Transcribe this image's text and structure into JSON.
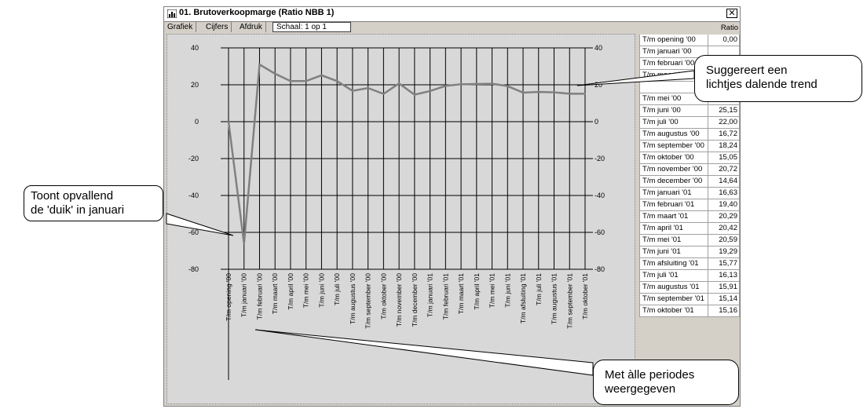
{
  "window": {
    "title": "01. Brutoverkoopmarge (Ratio NBB 1)",
    "close": "✕",
    "icon": "chart-window-icon"
  },
  "tabs": [
    "Grafiek",
    "Cijfers",
    "Afdruk"
  ],
  "schaal": "Schaal: 1 op 1",
  "table": {
    "header": "Ratio",
    "rows": [
      {
        "label": "T/m opening '00",
        "value": "0,00"
      },
      {
        "label": "T/m januari '00",
        "value": ""
      },
      {
        "label": "T/m februari '00",
        "value": ""
      },
      {
        "label": "T/m maart '00",
        "value": ""
      },
      {
        "label": "",
        "value": ""
      },
      {
        "label": "T/m mei '00",
        "value": ""
      },
      {
        "label": "T/m juni '00",
        "value": "25,15"
      },
      {
        "label": "T/m juli '00",
        "value": "22,00"
      },
      {
        "label": "T/m augustus '00",
        "value": "16,72"
      },
      {
        "label": "T/m september '00",
        "value": "18,24"
      },
      {
        "label": "T/m oktober '00",
        "value": "15,05"
      },
      {
        "label": "T/m november '00",
        "value": "20,72"
      },
      {
        "label": "T/m december '00",
        "value": "14,64"
      },
      {
        "label": "T/m januari '01",
        "value": "16,63"
      },
      {
        "label": "T/m februari '01",
        "value": "19,40"
      },
      {
        "label": "T/m maart '01",
        "value": "20,29"
      },
      {
        "label": "T/m april '01",
        "value": "20,42"
      },
      {
        "label": "T/m mei '01",
        "value": "20,59"
      },
      {
        "label": "T/m juni '01",
        "value": "19,29"
      },
      {
        "label": "T/m afsluiting '01",
        "value": "15,77"
      },
      {
        "label": "T/m juli '01",
        "value": "16,13"
      },
      {
        "label": "T/m augustus '01",
        "value": "15,91"
      },
      {
        "label": "T/m september '01",
        "value": "15,14"
      },
      {
        "label": "T/m oktober '01",
        "value": "15,16"
      }
    ]
  },
  "chart_data": {
    "type": "line",
    "ylim": [
      -80,
      40
    ],
    "yticks": [
      "40",
      "20",
      "0",
      "-20",
      "-40",
      "-60",
      "-80"
    ],
    "ytick_values": [
      40,
      20,
      0,
      -20,
      -40,
      -60,
      -80
    ],
    "grid": true,
    "categories": [
      "T/m opening '00",
      "T/m januari '00",
      "T/m februari '00",
      "T/m maart '00",
      "T/m april '00",
      "T/m mei '00",
      "T/m juni '00",
      "T/m juli '00",
      "T/m augustus '00",
      "T/m september '00",
      "T/m oktober '00",
      "T/m november '00",
      "T/m december '00",
      "T/m januari '01",
      "T/m februari '01",
      "T/m maart '01",
      "T/m april '01",
      "T/m mei '01",
      "T/m juni '01",
      "T/m afsluiting '01",
      "T/m juli '01",
      "T/m augustus '01",
      "T/m september '01",
      "T/m oktober '01"
    ],
    "values": [
      0,
      -66,
      31,
      26,
      22,
      22,
      25.15,
      22,
      16.72,
      18.24,
      15.05,
      20.72,
      14.64,
      16.63,
      19.4,
      20.29,
      20.42,
      20.59,
      19.29,
      15.77,
      16.13,
      15.91,
      15.14,
      15.16
    ],
    "line_color": "#808080"
  },
  "callouts": {
    "top_right": [
      "Suggereert een",
      "lichtjes dalende trend"
    ],
    "left": [
      "Toont opvallend",
      "de 'duik' in januari"
    ],
    "bottom": [
      "Met àlle periodes",
      "weergegeven"
    ]
  }
}
